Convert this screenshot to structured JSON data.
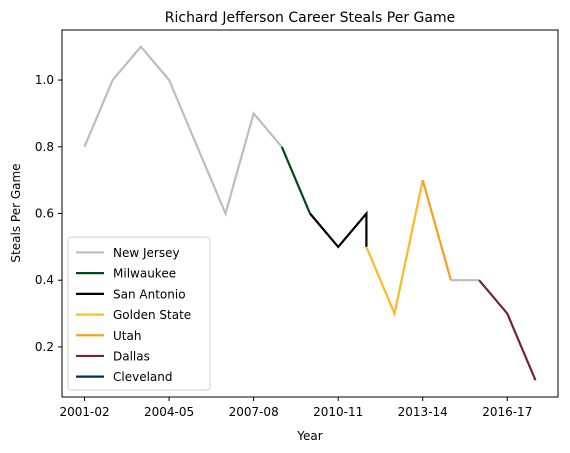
{
  "chart_data": {
    "type": "line",
    "title": "Richard Jefferson Career Steals Per Game",
    "xlabel": "Year",
    "ylabel": "Steals Per Game",
    "x_tick_labels": [
      "2001-02",
      "2004-05",
      "2007-08",
      "2010-11",
      "2013-14",
      "2016-17"
    ],
    "x_tick_values": [
      0,
      3,
      6,
      9,
      12,
      15
    ],
    "y_ticks": [
      0.2,
      0.4,
      0.6,
      0.8,
      1.0
    ],
    "y_tick_labels": [
      "0.2",
      "0.4",
      "0.6",
      "0.8",
      "1.0"
    ],
    "xlim": [
      -0.8,
      16.8
    ],
    "ylim": [
      0.05,
      1.15
    ],
    "grid": false,
    "legend_position": "lower-left",
    "series": [
      {
        "name": "New Jersey",
        "color": "#bdbdbd",
        "x": [
          0,
          1,
          2,
          3,
          4,
          5,
          6,
          7
        ],
        "values": [
          0.8,
          1.0,
          1.1,
          1.0,
          0.8,
          0.6,
          0.9,
          0.8
        ]
      },
      {
        "name": "Milwaukee",
        "color": "#00471b",
        "x": [
          7,
          8
        ],
        "values": [
          0.8,
          0.6
        ]
      },
      {
        "name": "San Antonio",
        "color": "#000000",
        "x": [
          8,
          9,
          10,
          10
        ],
        "values": [
          0.6,
          0.5,
          0.6,
          0.5
        ]
      },
      {
        "name": "Golden State",
        "color": "#fdb927",
        "x": [
          10,
          11,
          12
        ],
        "values": [
          0.5,
          0.3,
          0.7
        ]
      },
      {
        "name": "Utah",
        "color": "#f9a01b",
        "x": [
          12,
          13
        ],
        "values": [
          0.7,
          0.4
        ]
      },
      {
        "name": "New Jersey",
        "color": "#bdbdbd",
        "x": [
          13,
          14
        ],
        "values": [
          0.4,
          0.4
        ],
        "in_legend": false
      },
      {
        "name": "Dallas",
        "color": "#6f263d",
        "x": [
          14,
          15,
          16
        ],
        "values": [
          0.4,
          0.3,
          0.1
        ]
      },
      {
        "name": "Cleveland",
        "color": "#002d62",
        "x": [],
        "values": []
      }
    ]
  }
}
